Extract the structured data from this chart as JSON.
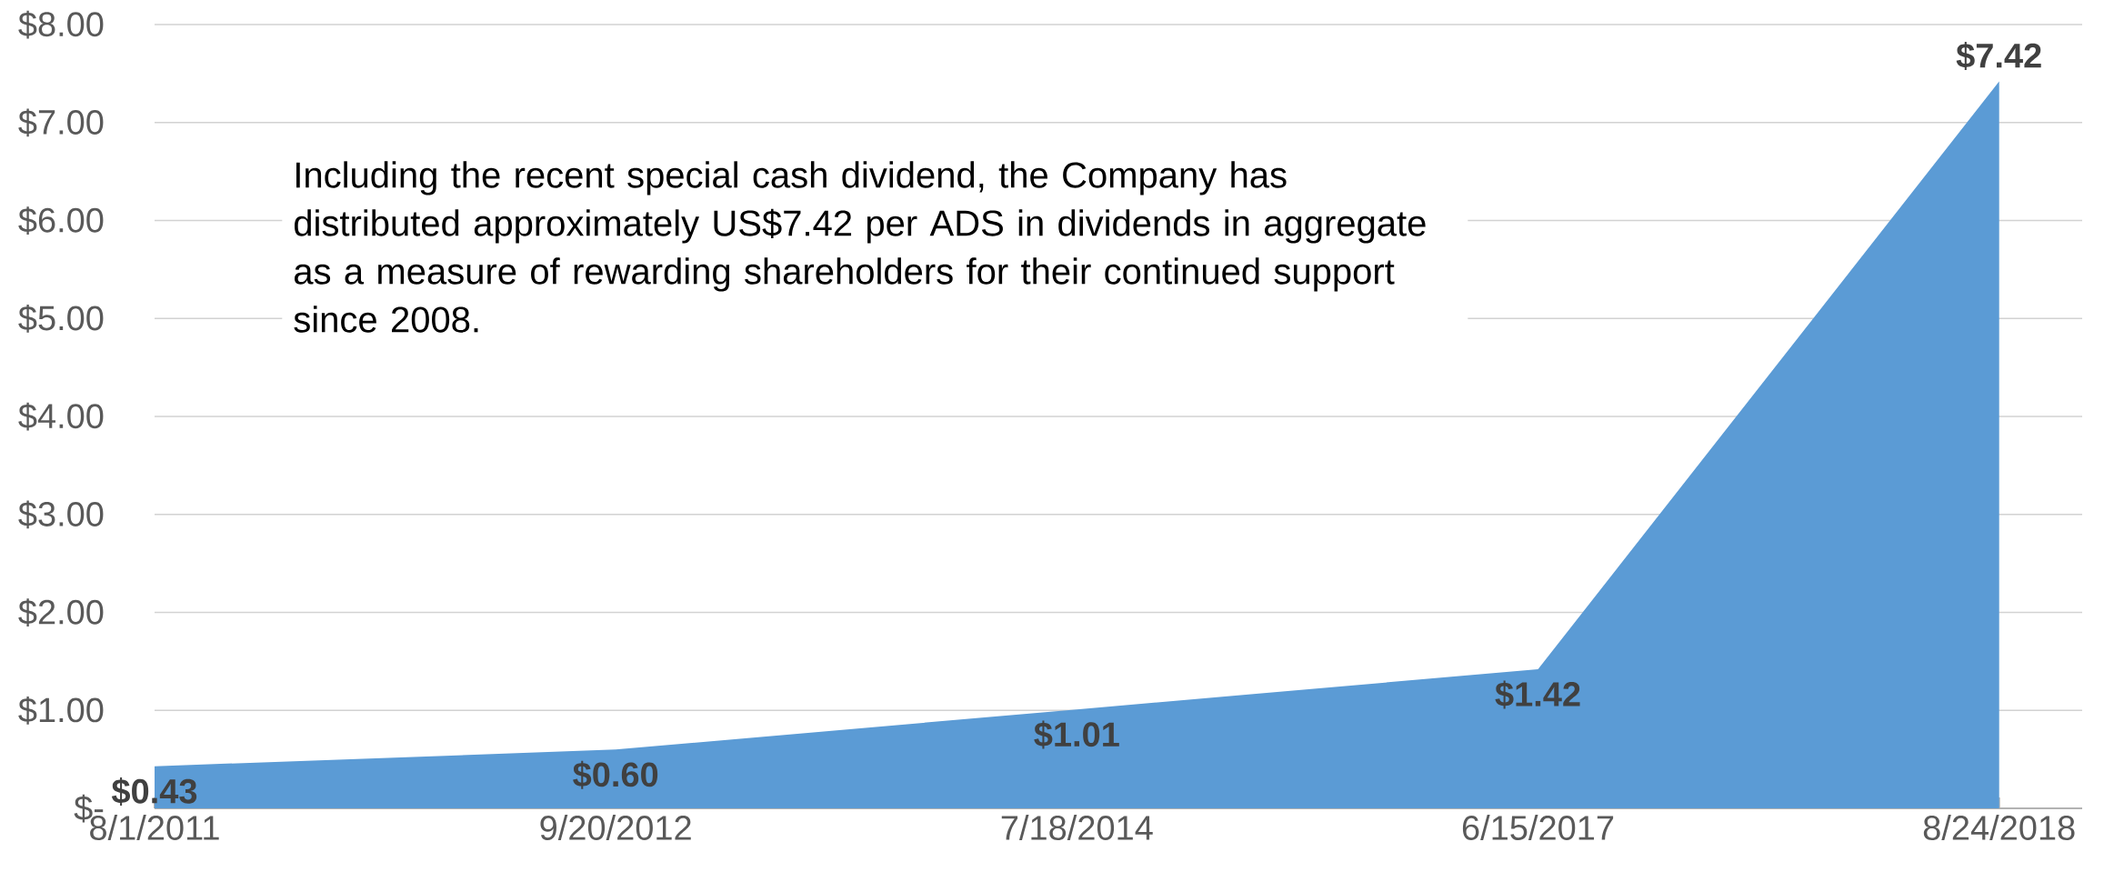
{
  "chart_data": {
    "type": "area",
    "categories": [
      "8/1/2011",
      "9/20/2012",
      "7/18/2014",
      "6/15/2017",
      "8/24/2018"
    ],
    "values": [
      0.43,
      0.6,
      1.01,
      1.42,
      7.42
    ],
    "value_labels": [
      "$0.43",
      "$0.60",
      "$1.01",
      "$1.42",
      "$7.42"
    ],
    "color": "#5b9bd5",
    "ylim": [
      0,
      8
    ],
    "yticks": [
      {
        "value": 0,
        "label": "$-"
      },
      {
        "value": 1,
        "label": "$1.00"
      },
      {
        "value": 2,
        "label": "$2.00"
      },
      {
        "value": 3,
        "label": "$3.00"
      },
      {
        "value": 4,
        "label": "$4.00"
      },
      {
        "value": 5,
        "label": "$5.00"
      },
      {
        "value": 6,
        "label": "$6.00"
      },
      {
        "value": 7,
        "label": "$7.00"
      },
      {
        "value": 8,
        "label": "$8.00"
      }
    ],
    "grid": "y",
    "annotations": [
      "Including the recent special cash dividend, the Company has distributed approximately US$7.42 per ADS in dividends in aggregate as a measure of rewarding shareholders for their continued support since 2008."
    ]
  }
}
